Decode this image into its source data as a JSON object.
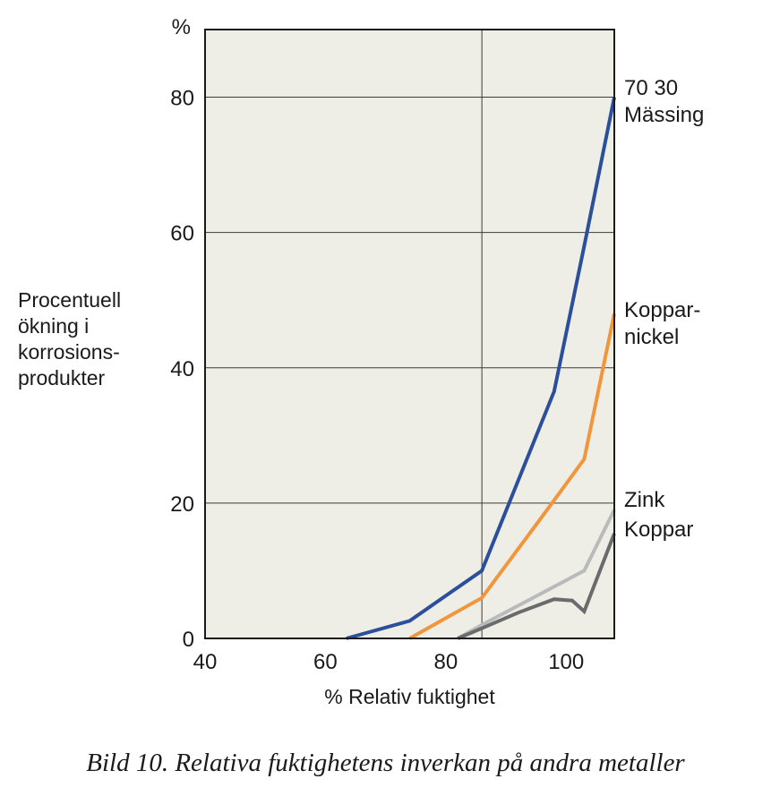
{
  "chart_data": {
    "type": "line",
    "title": "",
    "unit_label": "%",
    "xlabel": "% Relativ fuktighet",
    "ylabel_lines": [
      "Procentuell",
      "ökning i",
      "korrosions-",
      "produkter"
    ],
    "xlim": [
      40,
      108
    ],
    "ylim": [
      0,
      90
    ],
    "x_ticks": [
      40,
      60,
      80,
      100
    ],
    "y_ticks": [
      0,
      20,
      40,
      60,
      80
    ],
    "vertical_reference_line": 86,
    "grid": "horizontal",
    "background_color": "#efeee6",
    "series": [
      {
        "name": "70 30 Mässing",
        "label_lines": [
          "70 30",
          "Mässing"
        ],
        "color": "#2b4f9a",
        "x": [
          63.5,
          74,
          86,
          98,
          103,
          108
        ],
        "y": [
          0,
          2.6,
          10,
          36.5,
          58,
          80
        ]
      },
      {
        "name": "Koppar-nickel",
        "label_lines": [
          "Koppar-",
          "nickel"
        ],
        "color": "#f0963c",
        "x": [
          74,
          86,
          96,
          103,
          108
        ],
        "y": [
          0,
          6,
          18,
          26.5,
          48
        ]
      },
      {
        "name": "Zink",
        "label_lines": [
          "Zink"
        ],
        "color": "#b9babb",
        "x": [
          82,
          86,
          103,
          108
        ],
        "y": [
          0,
          2,
          10,
          19
        ]
      },
      {
        "name": "Koppar",
        "label_lines": [
          "Koppar"
        ],
        "color": "#6a6b6d",
        "x": [
          82,
          86,
          92,
          98,
          101,
          103,
          108
        ],
        "y": [
          0,
          1.5,
          3.8,
          5.8,
          5.6,
          4,
          15.5
        ]
      }
    ]
  },
  "caption": "Bild 10. Relativa fuktighetens inverkan på andra metaller"
}
